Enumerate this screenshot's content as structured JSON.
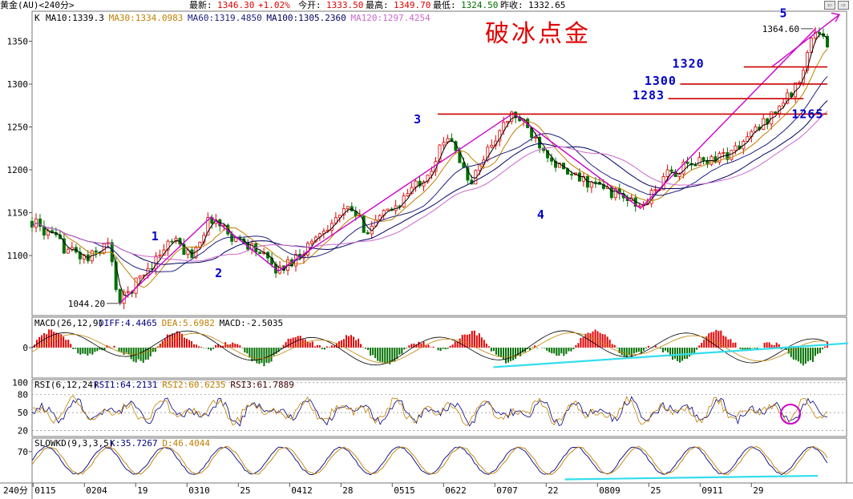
{
  "header": {
    "instrument": "黄金(AU)<240分>",
    "latest_label": "最新:",
    "latest_value": "1346.30",
    "change_pct": "+1.02%",
    "open_label": "今开:",
    "open_value": "1333.50",
    "high_label": "最高:",
    "high_value": "1349.70",
    "low_label": "最低:",
    "low_value": "1324.50",
    "prevclose_label": "昨收:",
    "prevclose_value": "1332.65",
    "nav_left": "⇦",
    "nav_right": "⇨"
  },
  "colors": {
    "up": "#e00000",
    "down": "#007000",
    "ma10": "#000000",
    "ma30": "#c08000",
    "ma60": "#202080",
    "ma100": "#000060",
    "ma120": "#cc66cc",
    "trend": "#cc00cc",
    "cyan": "#33ddee",
    "wave_label": "#0000cc",
    "level_line": "#cc0000"
  },
  "chart_data": [
    {
      "type": "candlestick",
      "panel": "price",
      "panel_label": "K",
      "indicators": [
        {
          "name": "MA10",
          "value": "1339.3"
        },
        {
          "name": "MA30",
          "value": "1334.0983"
        },
        {
          "name": "MA60",
          "value": "1319.4850"
        },
        {
          "name": "MA100",
          "value": "1305.2360"
        },
        {
          "name": "MA120",
          "value": "1297.4254"
        }
      ],
      "title": "破冰点金",
      "y_ticks": [
        1100,
        1150,
        1200,
        1250,
        1300,
        1350
      ],
      "y_range": [
        1030,
        1385
      ],
      "x_ticks": [
        "0115",
        "0204",
        "19",
        "0310",
        "25",
        "0412",
        "28",
        "0515",
        "0622",
        "0707",
        "22",
        "0809",
        "25",
        "0911",
        "29"
      ],
      "x_range_label": "240分",
      "path": [
        [
          0,
          1140
        ],
        [
          0.04,
          1110
        ],
        [
          0.07,
          1095
        ],
        [
          0.095,
          1115
        ],
        [
          0.11,
          1044.2
        ],
        [
          0.145,
          1085
        ],
        [
          0.175,
          1118
        ],
        [
          0.2,
          1100
        ],
        [
          0.225,
          1145
        ],
        [
          0.255,
          1120
        ],
        [
          0.275,
          1112
        ],
        [
          0.31,
          1082
        ],
        [
          0.34,
          1105
        ],
        [
          0.37,
          1135
        ],
        [
          0.4,
          1155
        ],
        [
          0.42,
          1130
        ],
        [
          0.46,
          1160
        ],
        [
          0.5,
          1200
        ],
        [
          0.525,
          1245
        ],
        [
          0.55,
          1180
        ],
        [
          0.575,
          1228
        ],
        [
          0.605,
          1266
        ],
        [
          0.64,
          1230
        ],
        [
          0.67,
          1195
        ],
        [
          0.7,
          1185
        ],
        [
          0.74,
          1170
        ],
        [
          0.765,
          1155
        ],
        [
          0.8,
          1195
        ],
        [
          0.84,
          1210
        ],
        [
          0.88,
          1220
        ],
        [
          0.92,
          1255
        ],
        [
          0.96,
          1295
        ],
        [
          0.985,
          1364.6
        ],
        [
          1,
          1346.3
        ]
      ],
      "annotations": {
        "low_point": "1044.20",
        "high_point": "1364.60",
        "waves": [
          "1",
          "2",
          "3",
          "4",
          "5"
        ],
        "levels": [
          {
            "label": "1320",
            "value": 1320
          },
          {
            "label": "1300",
            "value": 1300
          },
          {
            "label": "1283",
            "value": 1283
          },
          {
            "label": "1265",
            "value": 1265
          }
        ]
      }
    },
    {
      "type": "bar",
      "panel": "MACD",
      "panel_label": "MACD(26,12,9)",
      "indicators": [
        {
          "name": "DIFF",
          "value": "4.4465"
        },
        {
          "name": "DEA",
          "value": "5.6982"
        },
        {
          "name": "MACD",
          "value": "-2.5035"
        }
      ],
      "y_ticks": [
        0
      ],
      "y_range": [
        -14,
        14
      ]
    },
    {
      "type": "line",
      "panel": "RSI",
      "panel_label": "RSI(6,12,24)",
      "indicators": [
        {
          "name": "RSI1",
          "value": "64.2131"
        },
        {
          "name": "RSI2",
          "value": "60.6235"
        },
        {
          "name": "RSI3",
          "value": "61.7889"
        }
      ],
      "y_ticks": [
        20,
        50,
        80,
        100
      ],
      "y_range": [
        10,
        105
      ]
    },
    {
      "type": "line",
      "panel": "SLOWKD",
      "panel_label": "SLOWKD(9,3,3,5)",
      "indicators": [
        {
          "name": "K",
          "value": "35.7267"
        },
        {
          "name": "D",
          "value": "46.4044"
        }
      ],
      "y_ticks": [
        70
      ],
      "y_range": [
        0,
        100
      ]
    }
  ]
}
